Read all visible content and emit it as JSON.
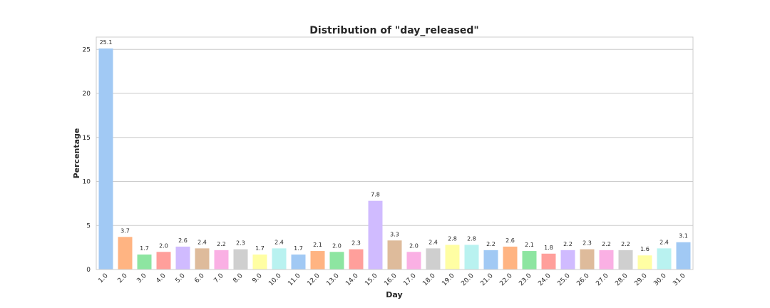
{
  "chart_data": {
    "type": "bar",
    "title": "Distribution of \"day_released\"",
    "xlabel": "Day",
    "ylabel": "Percentage",
    "ylim": [
      0,
      26.4
    ],
    "yticks": [
      0,
      5,
      10,
      15,
      20,
      25
    ],
    "grid": "horizontal",
    "categories": [
      "1.0",
      "2.0",
      "3.0",
      "4.0",
      "5.0",
      "6.0",
      "7.0",
      "8.0",
      "9.0",
      "10.0",
      "11.0",
      "12.0",
      "13.0",
      "14.0",
      "15.0",
      "16.0",
      "17.0",
      "18.0",
      "19.0",
      "20.0",
      "21.0",
      "22.0",
      "23.0",
      "24.0",
      "25.0",
      "26.0",
      "27.0",
      "28.0",
      "29.0",
      "30.0",
      "31.0"
    ],
    "values": [
      25.1,
      3.7,
      1.7,
      2.0,
      2.6,
      2.4,
      2.2,
      2.3,
      1.7,
      2.4,
      1.7,
      2.1,
      2.0,
      2.3,
      7.8,
      3.3,
      2.0,
      2.4,
      2.8,
      2.8,
      2.2,
      2.6,
      2.1,
      1.8,
      2.2,
      2.3,
      2.2,
      2.2,
      1.6,
      2.4,
      3.1
    ],
    "value_labels": [
      "25.1",
      "3.7",
      "1.7",
      "2.0",
      "2.6",
      "2.4",
      "2.2",
      "2.3",
      "1.7",
      "2.4",
      "1.7",
      "2.1",
      "2.0",
      "2.3",
      "7.8",
      "3.3",
      "2.0",
      "2.4",
      "2.8",
      "2.8",
      "2.2",
      "2.6",
      "2.1",
      "1.8",
      "2.2",
      "2.3",
      "2.2",
      "2.2",
      "1.6",
      "2.4",
      "3.1"
    ],
    "palette": [
      "#a1c9f4",
      "#ffb482",
      "#8de5a1",
      "#ff9f9b",
      "#d0bbff",
      "#debb9b",
      "#fab0e4",
      "#cfcfcf",
      "#fffea3",
      "#b9f2f0"
    ]
  }
}
